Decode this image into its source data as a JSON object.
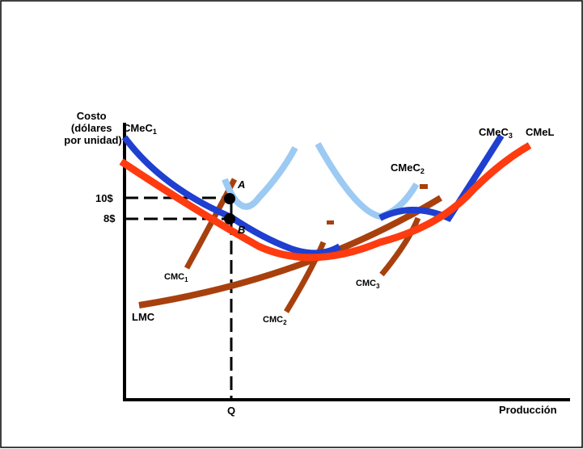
{
  "axis": {
    "y_label_lines": [
      "Costo",
      "(dólares",
      "por unidad)"
    ],
    "x_label": "Producción"
  },
  "ticks": {
    "y_high": "10$",
    "y_low": "8$",
    "x_q": "Q"
  },
  "points": {
    "a": "A",
    "b": "B"
  },
  "curves": {
    "cmec1": {
      "base": "CMeC",
      "sub": "1"
    },
    "cmec2": {
      "base": "CMeC",
      "sub": "2"
    },
    "cmec3": {
      "base": "CMeC",
      "sub": "3"
    },
    "cmel": "CMeL",
    "cmc1": {
      "base": "CMC",
      "sub": "1"
    },
    "cmc2": {
      "base": "CMC",
      "sub": "2"
    },
    "cmc3": {
      "base": "CMC",
      "sub": "3"
    },
    "lmc": "LMC"
  },
  "colors": {
    "srac1": "#1f3fd0",
    "srac2": "#9ccaf2",
    "srac3": "#1f3fd0",
    "lrac": "#ff3b10",
    "smc": "#a8400e",
    "lmc": "#a8400e",
    "frame": "#000000"
  }
}
